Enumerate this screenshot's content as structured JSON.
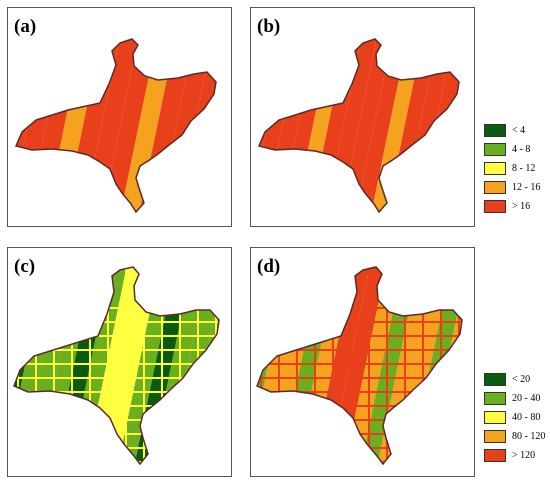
{
  "panels": [
    {
      "label": "(a)",
      "scale": "rain",
      "stripes": [
        4,
        4,
        4,
        3,
        4,
        4,
        4,
        3,
        4,
        4,
        4,
        3,
        4,
        4
      ],
      "hatch": []
    },
    {
      "label": "(b)",
      "scale": "rain",
      "stripes": [
        4,
        4,
        4,
        4,
        3,
        4,
        4,
        4,
        4,
        3,
        4,
        4,
        4,
        4,
        3,
        4,
        4
      ],
      "hatch": []
    },
    {
      "label": "(c)",
      "scale": "rain2",
      "stripes": [
        0,
        1,
        1,
        1,
        0,
        1,
        2,
        2,
        1,
        0,
        1,
        1,
        1,
        0,
        1,
        1
      ],
      "hatch": [
        "#ffff40"
      ]
    },
    {
      "label": "(d)",
      "scale": "rain2",
      "stripes": [
        1,
        3,
        3,
        1,
        3,
        4,
        4,
        3,
        1,
        3,
        3,
        1,
        3,
        3,
        3,
        1
      ],
      "hatch": [
        "#e8401a"
      ]
    }
  ],
  "legend_top": {
    "items": [
      {
        "label": "< 4",
        "color": "#0a5a10"
      },
      {
        "label": "4 - 8",
        "color": "#6ab01e"
      },
      {
        "label": "8 - 12",
        "color": "#ffff40"
      },
      {
        "label": "12 - 16",
        "color": "#f5a21e"
      },
      {
        "label": "> 16",
        "color": "#e8401a"
      }
    ]
  },
  "legend_bottom": {
    "items": [
      {
        "label": "< 20",
        "color": "#0a5a10"
      },
      {
        "label": "20 - 40",
        "color": "#6ab01e"
      },
      {
        "label": "40 - 80",
        "color": "#ffff40"
      },
      {
        "label": "80 - 120",
        "color": "#f5a21e"
      },
      {
        "label": "> 120",
        "color": "#e8401a"
      }
    ]
  }
}
